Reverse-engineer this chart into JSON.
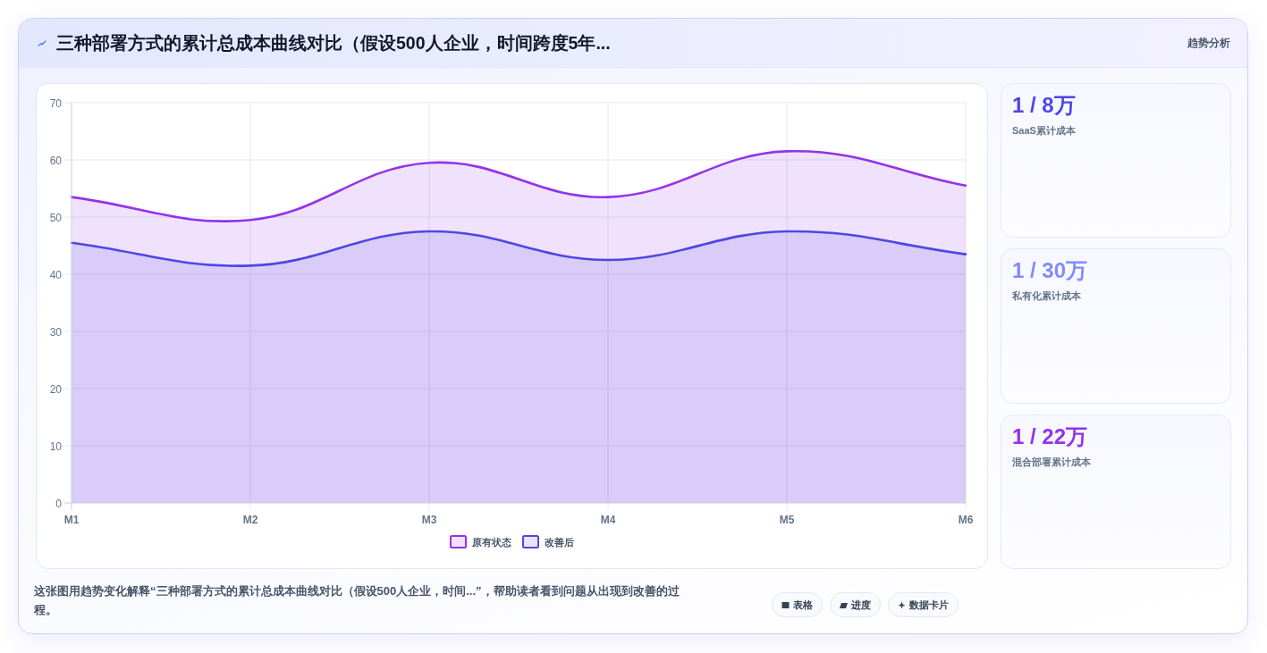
{
  "chart_data": [
    {
      "type": "area",
      "title": "三种部署方式的累计总成本曲线对比（假设500人企业，时间跨度5年...",
      "categories": [
        "M1",
        "M2",
        "M3",
        "M4",
        "M5",
        "M6"
      ],
      "series": [
        {
          "name": "原有状态",
          "color": "#9333ea",
          "values": [
            53.5,
            49.5,
            59.5,
            53.5,
            61.5,
            55.5
          ]
        },
        {
          "name": "改善后",
          "color": "#4f46e5",
          "values": [
            45.5,
            41.5,
            47.5,
            42.5,
            47.5,
            43.5
          ]
        }
      ],
      "ylim": [
        0,
        70
      ],
      "yticks": [
        0,
        10,
        20,
        30,
        40,
        50,
        60,
        70
      ],
      "grid": true,
      "legend": "bottom",
      "annotations": [
        "趋势分析",
        "这张图用趋势变化解释“三种部署方式的累计总成本曲线对比（假设500人企业，时间...”，帮助读者看到问题从出现到改善的过程。",
        "表格",
        "进度",
        "数据卡片"
      ]
    },
    {
      "type": "other",
      "categories": [
        "SaaS累计成本",
        "私有化累计成本",
        "混合部署累计成本"
      ],
      "value_labels": [
        "1 / 8万",
        "1 / 30万",
        "1 / 22万"
      ]
    }
  ]
}
